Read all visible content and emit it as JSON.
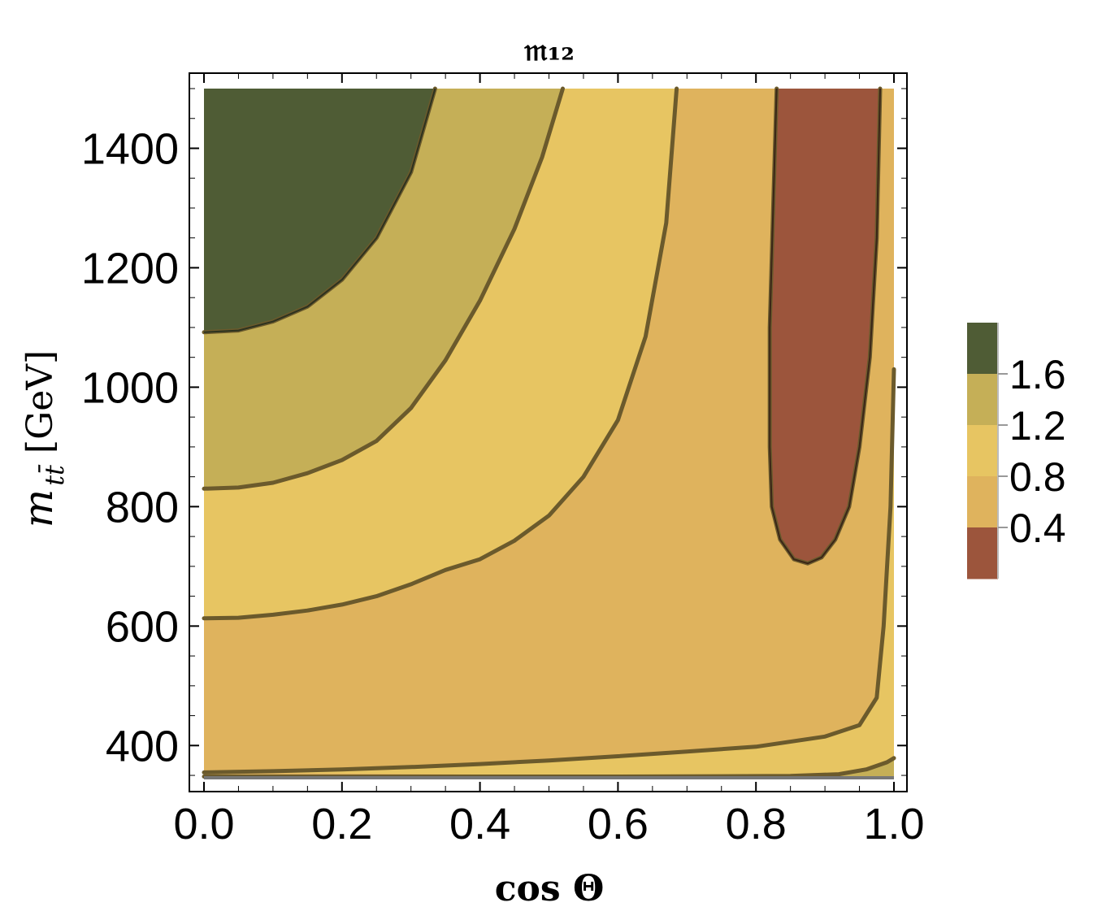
{
  "chart_data": {
    "type": "contour",
    "title": "𝔪₁₂",
    "xlabel": "cos Θ",
    "ylabel_main": "m",
    "ylabel_sub": "tt̄",
    "ylabel_unit": "[GeV]",
    "xlim": [
      0.0,
      1.0
    ],
    "ylim": [
      346,
      1500
    ],
    "x_ticks": [
      {
        "value": 0.0,
        "label": "0.0"
      },
      {
        "value": 0.2,
        "label": "0.2"
      },
      {
        "value": 0.4,
        "label": "0.4"
      },
      {
        "value": 0.6,
        "label": "0.6"
      },
      {
        "value": 0.8,
        "label": "0.8"
      },
      {
        "value": 1.0,
        "label": "1.0"
      }
    ],
    "y_ticks": [
      {
        "value": 400,
        "label": "400"
      },
      {
        "value": 600,
        "label": "600"
      },
      {
        "value": 800,
        "label": "800"
      },
      {
        "value": 1000,
        "label": "1000"
      },
      {
        "value": 1200,
        "label": "1200"
      },
      {
        "value": 1400,
        "label": "1400"
      }
    ],
    "levels": [
      0.4,
      0.8,
      1.2,
      1.6
    ],
    "colorbar": {
      "bands": [
        {
          "from": 0.0,
          "to": 0.4,
          "color": "#9c553c"
        },
        {
          "from": 0.4,
          "to": 0.8,
          "color": "#dfb35d"
        },
        {
          "from": 0.8,
          "to": 1.2,
          "color": "#e7c562"
        },
        {
          "from": 1.2,
          "to": 1.6,
          "color": "#c5af57"
        },
        {
          "from": 1.6,
          "to": 2.0,
          "color": "#4f5c35"
        }
      ],
      "tick_labels": [
        "1.6",
        "1.2",
        "0.8",
        "0.4"
      ]
    },
    "contours": [
      {
        "level": 1.6,
        "points": [
          [
            0.0,
            1092
          ],
          [
            0.05,
            1095
          ],
          [
            0.1,
            1110
          ],
          [
            0.15,
            1135
          ],
          [
            0.2,
            1180
          ],
          [
            0.25,
            1250
          ],
          [
            0.3,
            1360
          ],
          [
            0.335,
            1500
          ]
        ]
      },
      {
        "level": 1.2,
        "points": [
          [
            0.0,
            830
          ],
          [
            0.05,
            832
          ],
          [
            0.1,
            840
          ],
          [
            0.15,
            856
          ],
          [
            0.2,
            878
          ],
          [
            0.25,
            910
          ],
          [
            0.3,
            965
          ],
          [
            0.35,
            1045
          ],
          [
            0.4,
            1145
          ],
          [
            0.45,
            1265
          ],
          [
            0.49,
            1385
          ],
          [
            0.52,
            1500
          ]
        ]
      },
      {
        "level": 0.8,
        "points": [
          [
            0.0,
            613
          ],
          [
            0.05,
            614
          ],
          [
            0.1,
            619
          ],
          [
            0.15,
            626
          ],
          [
            0.2,
            636
          ],
          [
            0.25,
            650
          ],
          [
            0.3,
            670
          ],
          [
            0.35,
            694
          ],
          [
            0.4,
            712
          ],
          [
            0.45,
            743
          ],
          [
            0.5,
            785
          ],
          [
            0.55,
            850
          ],
          [
            0.6,
            945
          ],
          [
            0.64,
            1085
          ],
          [
            0.67,
            1275
          ],
          [
            0.685,
            1500
          ]
        ]
      },
      {
        "level": 0.4,
        "points": [
          [
            0.0,
            355
          ],
          [
            0.1,
            357
          ],
          [
            0.2,
            360
          ],
          [
            0.3,
            364
          ],
          [
            0.4,
            369
          ],
          [
            0.5,
            375
          ],
          [
            0.6,
            382
          ],
          [
            0.7,
            390
          ],
          [
            0.8,
            398
          ],
          [
            0.9,
            415
          ],
          [
            0.95,
            434
          ],
          [
            0.975,
            480
          ],
          [
            0.985,
            600
          ],
          [
            0.995,
            800
          ],
          [
            1.0,
            1030
          ]
        ]
      },
      {
        "level": 0.4,
        "points": [
          [
            0.83,
            1500
          ],
          [
            0.825,
            1300
          ],
          [
            0.82,
            1100
          ],
          [
            0.82,
            900
          ],
          [
            0.823,
            800
          ],
          [
            0.835,
            745
          ],
          [
            0.855,
            712
          ],
          [
            0.875,
            705
          ],
          [
            0.895,
            715
          ],
          [
            0.915,
            745
          ],
          [
            0.935,
            800
          ],
          [
            0.95,
            900
          ],
          [
            0.965,
            1050
          ],
          [
            0.975,
            1250
          ],
          [
            0.98,
            1500
          ]
        ]
      },
      {
        "level": 0.8,
        "points": [
          [
            0.0,
            348
          ],
          [
            0.3,
            348
          ],
          [
            0.6,
            348
          ],
          [
            0.85,
            349
          ],
          [
            0.92,
            352
          ],
          [
            0.96,
            360
          ],
          [
            0.99,
            372
          ],
          [
            1.0,
            379
          ]
        ]
      }
    ]
  }
}
